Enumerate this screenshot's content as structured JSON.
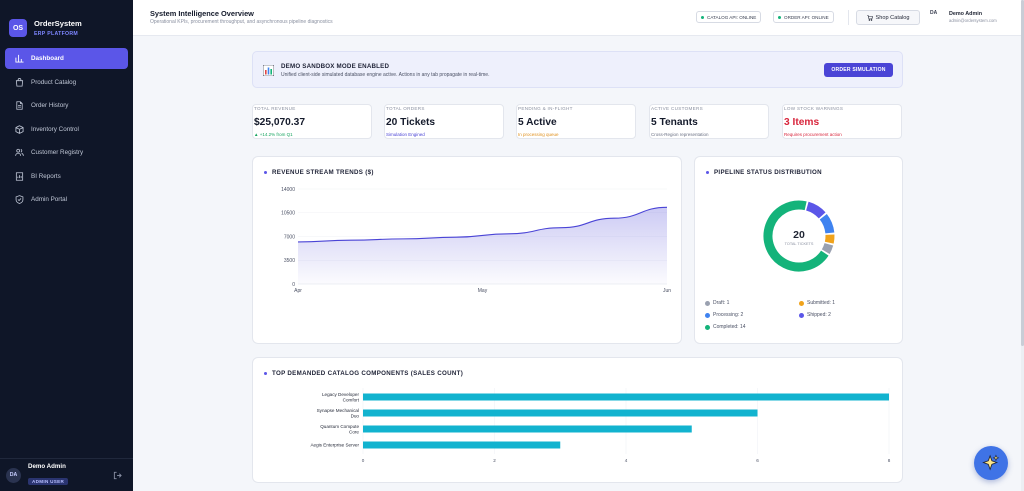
{
  "brand": {
    "logo": "OS",
    "name": "OrderSystem",
    "sub": "ERP PLATFORM"
  },
  "nav": [
    {
      "label": "Dashboard",
      "icon": "bar-chart-icon",
      "active": true
    },
    {
      "label": "Product Catalog",
      "icon": "bag-icon"
    },
    {
      "label": "Order History",
      "icon": "document-icon"
    },
    {
      "label": "Inventory Control",
      "icon": "box-icon"
    },
    {
      "label": "Customer Registry",
      "icon": "users-icon"
    },
    {
      "label": "BI Reports",
      "icon": "report-icon"
    },
    {
      "label": "Admin Portal",
      "icon": "shield-icon"
    }
  ],
  "sidebar_user": {
    "initials": "DA",
    "name": "Demo Admin",
    "role": "ADMIN USER"
  },
  "header": {
    "title": "System Intelligence Overview",
    "subtitle": "Operational KPIs, procurement throughput, and asynchronous pipeline diagnostics",
    "catalog_api": "CATALOG API: ONLINE",
    "order_api": "ORDER API: ONLINE",
    "shop_label": "Shop Catalog",
    "user_initials": "DA",
    "user_name": "Demo Admin",
    "user_email": "admin@ordersystem.com"
  },
  "banner": {
    "title": "DEMO SANDBOX MODE ENABLED",
    "text": "Unified client-side simulated database engine active. Actions in any tab propagate in real-time.",
    "button": "ORDER SIMULATION"
  },
  "kpis": [
    {
      "label": "TOTAL REVENUE",
      "value": "$25,070.37",
      "note": "▲ +14.2% from Q1",
      "note_color": "#14a35e",
      "value_color": "#141a2b"
    },
    {
      "label": "TOTAL ORDERS",
      "value": "20 Tickets",
      "note": "Simulation Engined",
      "note_color": "#4a44d6",
      "value_color": "#141a2b"
    },
    {
      "label": "PENDING & IN-FLIGHT",
      "value": "5 Active",
      "note": "In processing queue",
      "note_color": "#e0901c",
      "value_color": "#141a2b"
    },
    {
      "label": "ACTIVE CUSTOMERS",
      "value": "5 Tenants",
      "note": "Cross-Region representation",
      "note_color": "#6b7184",
      "value_color": "#141a2b"
    },
    {
      "label": "LOW STOCK WARNINGS",
      "value": "3 Items",
      "note": "Requires procurement action",
      "note_color": "#d8253c",
      "value_color": "#d8253c"
    }
  ],
  "revenue_card": {
    "title": "REVENUE STREAM TRENDS ($)"
  },
  "pipeline_card": {
    "title": "PIPELINE STATUS DISTRIBUTION",
    "total": "20",
    "total_label": "TOTAL TICKETS"
  },
  "components_card": {
    "title": "TOP DEMANDED CATALOG COMPONENTS (SALES COUNT)"
  },
  "chart_data": [
    {
      "type": "area",
      "title": "REVENUE STREAM TRENDS ($)",
      "x_ticks": [
        "Apr",
        "May",
        "Jun"
      ],
      "y_ticks": [
        "14000",
        "10500",
        "7000",
        "3500",
        "0"
      ],
      "ylim": [
        0,
        14000
      ],
      "series": [
        {
          "values": [
            6200,
            6450,
            6650,
            6900,
            7400,
            8300,
            9700,
            11300
          ]
        }
      ],
      "color": "#4a44d6"
    },
    {
      "type": "pie",
      "title": "PIPELINE STATUS DISTRIBUTION",
      "slices": [
        {
          "label": "Draft",
          "value": 1,
          "color": "#9aa1b0",
          "text": "Draft: 1"
        },
        {
          "label": "Submitted",
          "value": 1,
          "color": "#f0a31c",
          "text": "Submitted: 1"
        },
        {
          "label": "Processing",
          "value": 2,
          "color": "#3f83f0",
          "text": "Processing: 2"
        },
        {
          "label": "Shipped",
          "value": 2,
          "color": "#5b56e8",
          "text": "Shipped: 2"
        },
        {
          "label": "Completed",
          "value": 14,
          "color": "#14b37a",
          "text": "Completed: 14"
        }
      ]
    },
    {
      "type": "bar",
      "orientation": "horizontal",
      "title": "TOP DEMANDED CATALOG COMPONENTS (SALES COUNT)",
      "categories": [
        [
          "Legacy Developer",
          "Comfort"
        ],
        [
          "Synapse Mechanical",
          "Duo"
        ],
        [
          "Quantum Compute",
          "Core"
        ],
        [
          "Aegis Enterprise Server"
        ]
      ],
      "values": [
        8,
        6,
        5,
        3
      ],
      "x_ticks": [
        "0",
        "2",
        "4",
        "6",
        "8"
      ],
      "xlim": [
        0,
        8
      ],
      "color": "#12b3cf"
    }
  ]
}
